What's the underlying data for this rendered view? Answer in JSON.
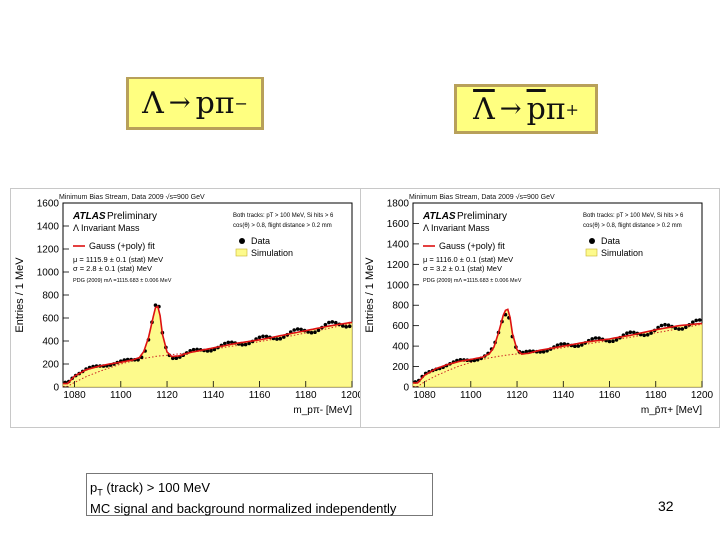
{
  "slide": {
    "page_number": "32",
    "titles": {
      "left": {
        "lambda": "Λ",
        "arrow": "→",
        "proton": "p",
        "pion": "π",
        "charge": "−"
      },
      "right": {
        "lambda": "Λ",
        "arrow": "→",
        "proton": "p",
        "pion": "π",
        "charge": "+"
      }
    },
    "notes": {
      "pt_prefix": "p",
      "pt_sub": "T",
      "pt_rest": " (track) > 100 MeV",
      "line2": "MC signal and background normalized independently"
    }
  },
  "chart_data": [
    {
      "type": "line",
      "panel": "left",
      "header": "Minimum Bias Stream, Data 2009 √s=900 GeV",
      "atlas": "ATLAS",
      "preliminary": "Preliminary",
      "subtitle": "Λ Invariant Mass",
      "cuts_line1": "Both tracks: pT > 100 MeV, Si hits > 6",
      "cuts_line2": "cos(θ) > 0.8, flight distance > 0.2 mm",
      "fit_label": "Gauss (+poly) fit",
      "mu_text": "μ = 1115.9 ± 0.1 (stat) MeV",
      "sigma_text": "σ = 2.8 ± 0.1 (stat) MeV",
      "pdg_text": "PDG (2009) mΛ =1115.683 ± 0.006 MeV",
      "legend": [
        "Data",
        "Simulation"
      ],
      "xlabel": "m_pπ- [MeV]",
      "ylabel": "Entries / 1 MeV",
      "xlim": [
        1075,
        1200
      ],
      "ylim": [
        0,
        1600
      ],
      "x_ticks": [
        1080,
        1100,
        1120,
        1140,
        1160,
        1180,
        1200
      ],
      "y_ticks": [
        0,
        200,
        400,
        600,
        800,
        1000,
        1200,
        1400,
        1600
      ],
      "x": [
        1077,
        1080,
        1085,
        1090,
        1095,
        1100,
        1105,
        1108,
        1110,
        1112,
        1114,
        1115,
        1116,
        1117,
        1118,
        1120,
        1122,
        1125,
        1130,
        1140,
        1150,
        1160,
        1170,
        1180,
        1190,
        1199
      ],
      "data": [
        40,
        100,
        150,
        180,
        200,
        215,
        235,
        250,
        300,
        420,
        600,
        680,
        700,
        620,
        450,
        300,
        260,
        270,
        300,
        340,
        380,
        410,
        450,
        490,
        530,
        560
      ],
      "fit": [
        30,
        95,
        150,
        178,
        200,
        215,
        235,
        255,
        310,
        430,
        610,
        690,
        700,
        620,
        460,
        305,
        265,
        270,
        300,
        340,
        380,
        410,
        450,
        490,
        530,
        560
      ],
      "background": [
        5,
        40,
        90,
        130,
        165,
        200,
        225,
        240,
        248,
        256,
        262,
        266,
        268,
        270,
        272,
        276,
        281,
        288,
        300,
        330,
        360,
        395,
        430,
        470,
        510,
        550
      ]
    },
    {
      "type": "line",
      "panel": "right",
      "header": "Minimum Bias Stream, Data 2009 √s=900 GeV",
      "atlas": "ATLAS",
      "preliminary": "Preliminary",
      "subtitle": "Λ Invariant Mass",
      "cuts_line1": "Both tracks: pT > 100 MeV, Si hits > 6",
      "cuts_line2": "cos(θ) > 0.8, flight distance > 0.2 mm",
      "fit_label": "Gauss (+poly) fit",
      "mu_text": "μ = 1116.0 ± 0.1 (stat) MeV",
      "sigma_text": "σ = 3.2 ± 0.1 (stat) MeV",
      "pdg_text": "PDG (2009) mΛ =1115.683 ± 0.006 MeV",
      "legend": [
        "Data",
        "Simulation"
      ],
      "xlabel": "m_p̄π+ [MeV]",
      "ylabel": "Entries / 1 MeV",
      "xlim": [
        1075,
        1200
      ],
      "ylim": [
        0,
        1800
      ],
      "x_ticks": [
        1080,
        1100,
        1120,
        1140,
        1160,
        1180,
        1200
      ],
      "y_ticks": [
        0,
        200,
        400,
        600,
        800,
        1000,
        1200,
        1400,
        1600,
        1800
      ],
      "x": [
        1077,
        1080,
        1085,
        1090,
        1095,
        1100,
        1105,
        1108,
        1110,
        1112,
        1114,
        1115,
        1116,
        1117,
        1118,
        1120,
        1122,
        1125,
        1130,
        1140,
        1150,
        1160,
        1170,
        1180,
        1190,
        1199
      ],
      "data": [
        50,
        120,
        180,
        220,
        250,
        270,
        290,
        320,
        380,
        520,
        690,
        740,
        760,
        680,
        520,
        360,
        320,
        330,
        360,
        400,
        440,
        470,
        510,
        560,
        600,
        620
      ],
      "fit": [
        40,
        115,
        180,
        220,
        250,
        270,
        292,
        325,
        390,
        530,
        700,
        750,
        760,
        680,
        525,
        365,
        322,
        330,
        360,
        400,
        440,
        470,
        510,
        560,
        600,
        620
      ],
      "background": [
        5,
        50,
        110,
        160,
        205,
        240,
        270,
        285,
        292,
        300,
        306,
        310,
        313,
        316,
        319,
        323,
        328,
        336,
        350,
        385,
        420,
        455,
        490,
        530,
        570,
        610
      ]
    }
  ]
}
